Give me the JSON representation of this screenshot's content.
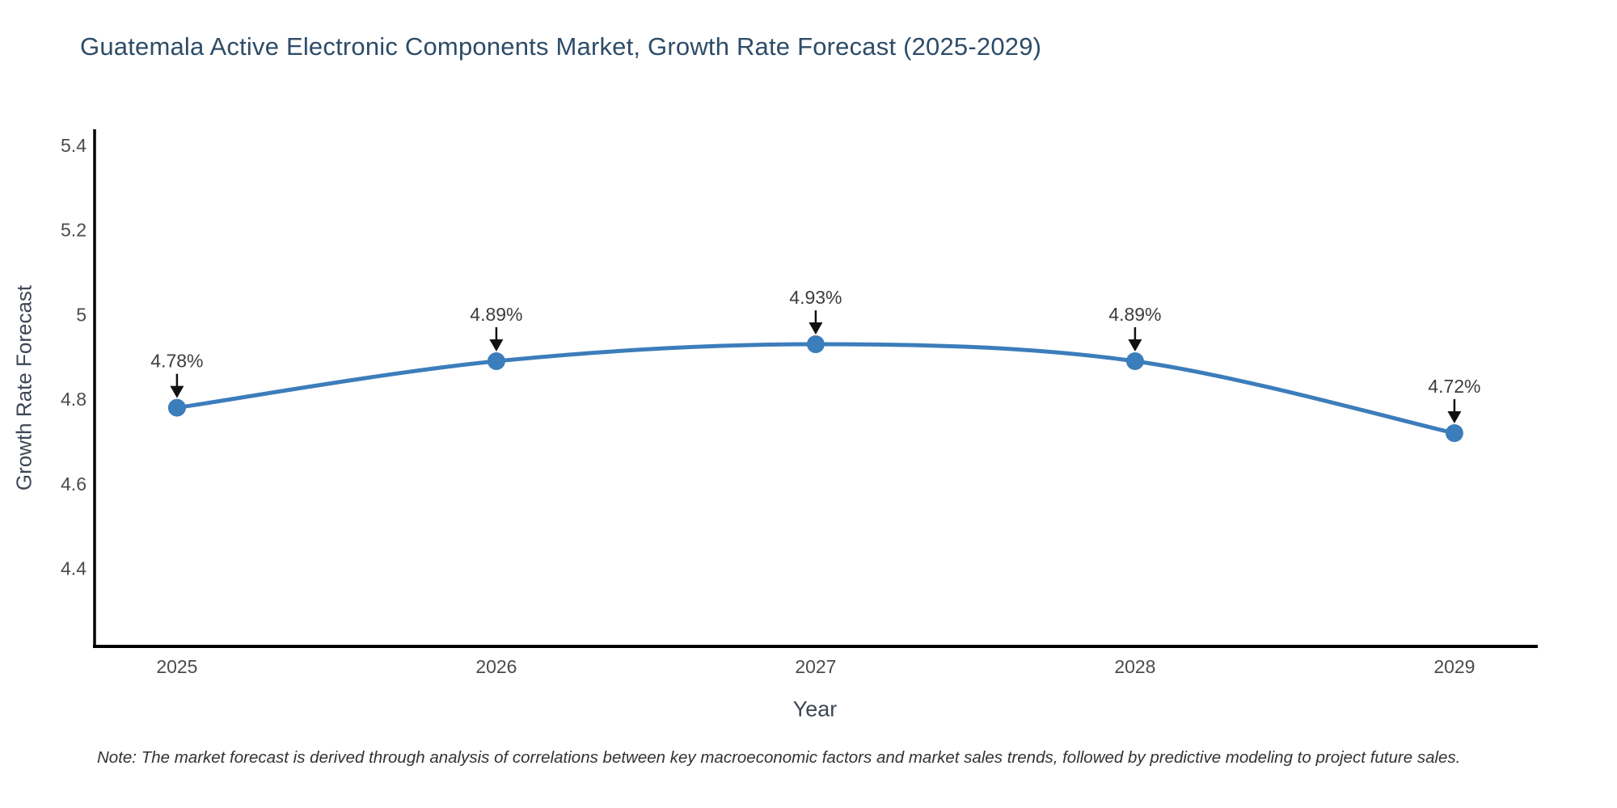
{
  "page": {
    "background_color": "#ffffff"
  },
  "chart_data": {
    "type": "line",
    "title": "Guatemala Active Electronic Components Market, Growth Rate Forecast (2025-2029)",
    "xlabel": "Year",
    "ylabel": "Growth Rate Forecast",
    "x": [
      2025,
      2026,
      2027,
      2028,
      2029
    ],
    "x_tick_labels": [
      "2025",
      "2026",
      "2027",
      "2028",
      "2029"
    ],
    "values": [
      4.78,
      4.89,
      4.93,
      4.89,
      4.72
    ],
    "point_labels": [
      "4.78%",
      "4.89%",
      "4.93%",
      "4.89%",
      "4.72%"
    ],
    "yticks": [
      4.4,
      4.6,
      4.8,
      5,
      5.2,
      5.4
    ],
    "ytick_labels": [
      "4.4",
      "4.6",
      "4.8",
      "5",
      "5.2",
      "5.4"
    ],
    "xlim": [
      2024.742,
      2029.261
    ],
    "ylim": [
      4.216,
      5.438
    ],
    "grid": false,
    "legend": false,
    "line_shape": "spline",
    "line_color": "#3c7dbb",
    "marker_color": "#3c7dbb",
    "axis_color": "#000000",
    "tick_label_color": "#4b4b4b",
    "title_color": "#2e4c68",
    "axis_title_color": "#3d4755",
    "annotation_text_color": "#3d3d3d",
    "arrow_color": "#111111"
  },
  "footer": {
    "note": "Note: The market forecast is derived through analysis of correlations between key macroeconomic factors and market sales trends, followed by predictive modeling to project future sales."
  }
}
